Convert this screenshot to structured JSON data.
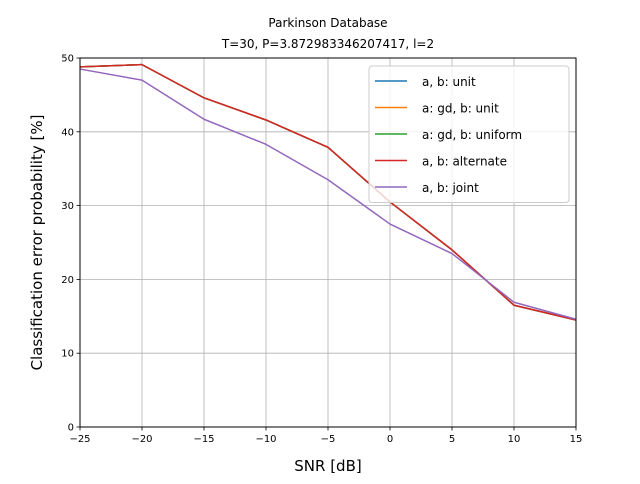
{
  "chart_data": {
    "type": "line",
    "title": "Parkinson Database",
    "subtitle": "T=30, P=3.872983346207417, l=2",
    "xlabel": "SNR [dB]",
    "ylabel": "Classification error probability [%]",
    "xlim": [
      -25,
      15
    ],
    "ylim": [
      0,
      50
    ],
    "xticks": [
      -25,
      -20,
      -15,
      -10,
      -5,
      0,
      5,
      10,
      15
    ],
    "xtick_labels": [
      "−25",
      "−20",
      "−15",
      "−10",
      "−5",
      "0",
      "5",
      "10",
      "15"
    ],
    "yticks": [
      0,
      10,
      20,
      30,
      40,
      50
    ],
    "ytick_labels": [
      "0",
      "10",
      "20",
      "30",
      "40",
      "50"
    ],
    "grid": true,
    "legend_position": "top-right",
    "x": [
      -25,
      -20,
      -15,
      -10,
      -5,
      0,
      5,
      10,
      15
    ],
    "series": [
      {
        "name": "a, b: unit",
        "color": "#1f77b4",
        "values": [
          48.8,
          49.1,
          44.6,
          41.6,
          37.9,
          30.5,
          24.0,
          16.5,
          14.5
        ]
      },
      {
        "name": "a: gd, b: unit",
        "color": "#ff7f0e",
        "values": [
          48.8,
          49.1,
          44.6,
          41.6,
          37.9,
          30.5,
          24.0,
          16.5,
          14.5
        ]
      },
      {
        "name": "a: gd, b: uniform",
        "color": "#2ca02c",
        "values": [
          48.8,
          49.1,
          44.6,
          41.6,
          37.9,
          30.5,
          24.0,
          16.5,
          14.5
        ]
      },
      {
        "name": "a, b: alternate",
        "color": "#d62728",
        "values": [
          48.8,
          49.1,
          44.6,
          41.6,
          37.9,
          30.5,
          24.0,
          16.5,
          14.5
        ]
      },
      {
        "name": "a, b: joint",
        "color": "#9467bd",
        "values": [
          48.5,
          47.0,
          41.7,
          38.3,
          33.5,
          27.5,
          23.5,
          16.9,
          14.6
        ]
      }
    ]
  }
}
